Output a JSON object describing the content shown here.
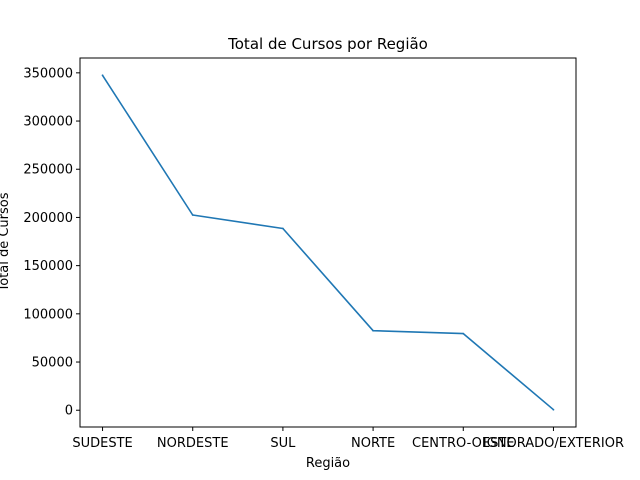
{
  "chart_data": {
    "type": "line",
    "title": "Total de Cursos por Região",
    "xlabel": "Região",
    "ylabel": "Total de Cursos",
    "categories": [
      "SUDESTE",
      "NORDESTE",
      "SUL",
      "NORTE",
      "CENTRO-OESTE",
      "IGNORADO/EXTERIOR"
    ],
    "series": [
      {
        "values": [
          347500,
          202500,
          188500,
          82500,
          79500,
          500
        ],
        "color": "#1f77b4"
      }
    ],
    "ylim": [
      -17400,
      365400
    ],
    "yticks": [
      0,
      50000,
      100000,
      150000,
      200000,
      250000,
      300000,
      350000
    ],
    "grid": false,
    "legend": false
  }
}
